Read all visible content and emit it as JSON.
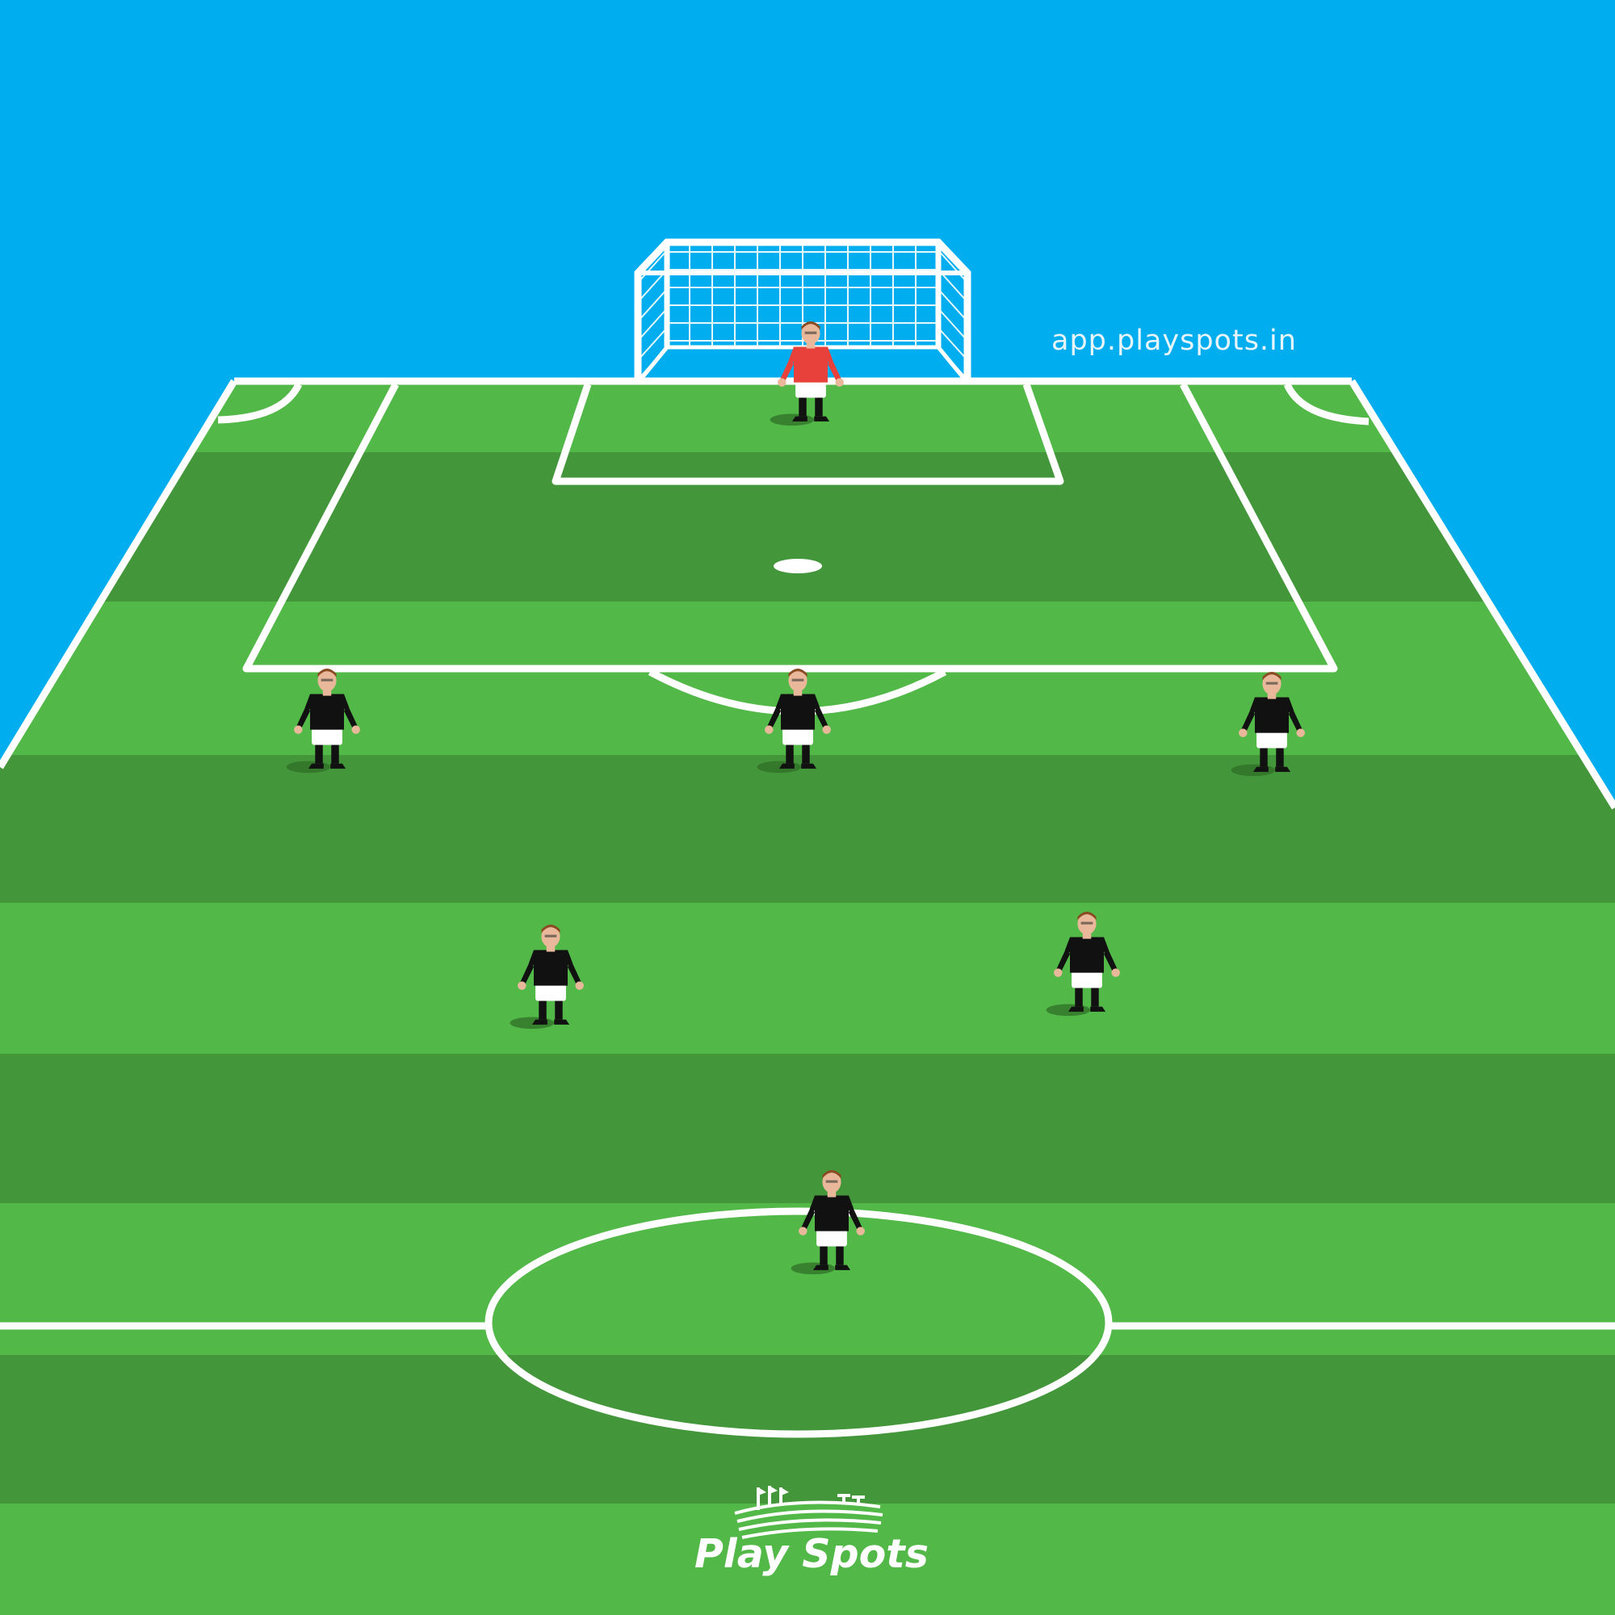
{
  "watermark": "app.playspots.in",
  "brand": {
    "name": "Play Spots",
    "logo_icon": "stadium-icon"
  },
  "colors": {
    "sky": "#00aeef",
    "grass_light": "#52b848",
    "grass_dark": "#43973a",
    "lines": "#ffffff",
    "goalkeeper_shirt": "#e8403a",
    "outfield_shirt": "#111111"
  },
  "players": [
    {
      "role": "goalkeeper",
      "kit": "red"
    },
    {
      "role": "outfield",
      "kit": "black"
    },
    {
      "role": "outfield",
      "kit": "black"
    },
    {
      "role": "outfield",
      "kit": "black"
    },
    {
      "role": "outfield",
      "kit": "black"
    },
    {
      "role": "outfield",
      "kit": "black"
    },
    {
      "role": "outfield",
      "kit": "black"
    }
  ]
}
